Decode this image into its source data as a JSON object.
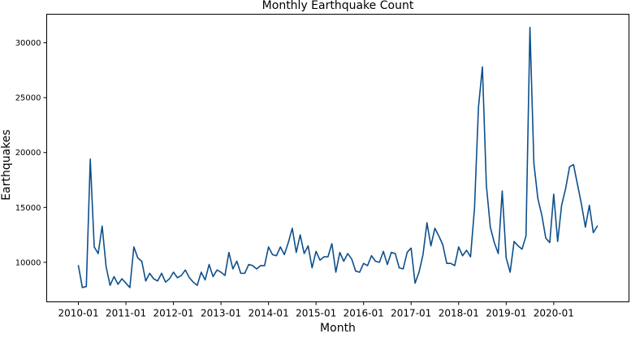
{
  "chart_data": {
    "type": "line",
    "title": "Monthly Earthquake Count",
    "xlabel": "Month",
    "ylabel": "Earthquakes",
    "x_start": "2010-01",
    "x_end": "2020-12",
    "xlim": [
      "2009-05",
      "2021-08"
    ],
    "ylim": [
      6400,
      32600
    ],
    "xticks": [
      "2010-01",
      "2011-01",
      "2012-01",
      "2013-01",
      "2014-01",
      "2015-01",
      "2016-01",
      "2017-01",
      "2018-01",
      "2019-01",
      "2020-01"
    ],
    "yticks": [
      10000,
      15000,
      20000,
      25000,
      30000
    ],
    "grid": false,
    "legend": "none",
    "color": "#0d4f8b",
    "series": [
      {
        "values": [
          9700,
          7700,
          7800,
          19400,
          11400,
          10800,
          13300,
          9600,
          7900,
          8700,
          8000,
          8500,
          8100,
          7700,
          11400,
          10400,
          10100,
          8300,
          9000,
          8500,
          8300,
          9000,
          8200,
          8500,
          9100,
          8600,
          8800,
          9300,
          8600,
          8200,
          7900,
          9100,
          8400,
          9800,
          8700,
          9300,
          9100,
          8800,
          10900,
          9400,
          10100,
          9000,
          9000,
          9800,
          9700,
          9400,
          9700,
          9700,
          11400,
          10700,
          10600,
          11400,
          10700,
          11800,
          13100,
          10900,
          12500,
          10800,
          11500,
          9500,
          11000,
          10200,
          10500,
          10500,
          11700,
          9100,
          10900,
          10100,
          10800,
          10300,
          9200,
          9100,
          9900,
          9700,
          10600,
          10100,
          10000,
          11000,
          9800,
          10900,
          10800,
          9500,
          9400,
          10900,
          11300,
          8100,
          9100,
          10700,
          13600,
          11500,
          13100,
          12400,
          11600,
          9900,
          9900,
          9700,
          11400,
          10600,
          11100,
          10500,
          14900,
          24100,
          27800,
          17000,
          13200,
          11800,
          10800,
          16500,
          10400,
          9100,
          11900,
          11500,
          11200,
          12400,
          31400,
          19000,
          15800,
          14300,
          12200,
          11800,
          16200,
          11900,
          15200,
          16700,
          18700,
          18900,
          17100,
          15300,
          13200,
          15200,
          12700,
          13300
        ]
      }
    ]
  }
}
